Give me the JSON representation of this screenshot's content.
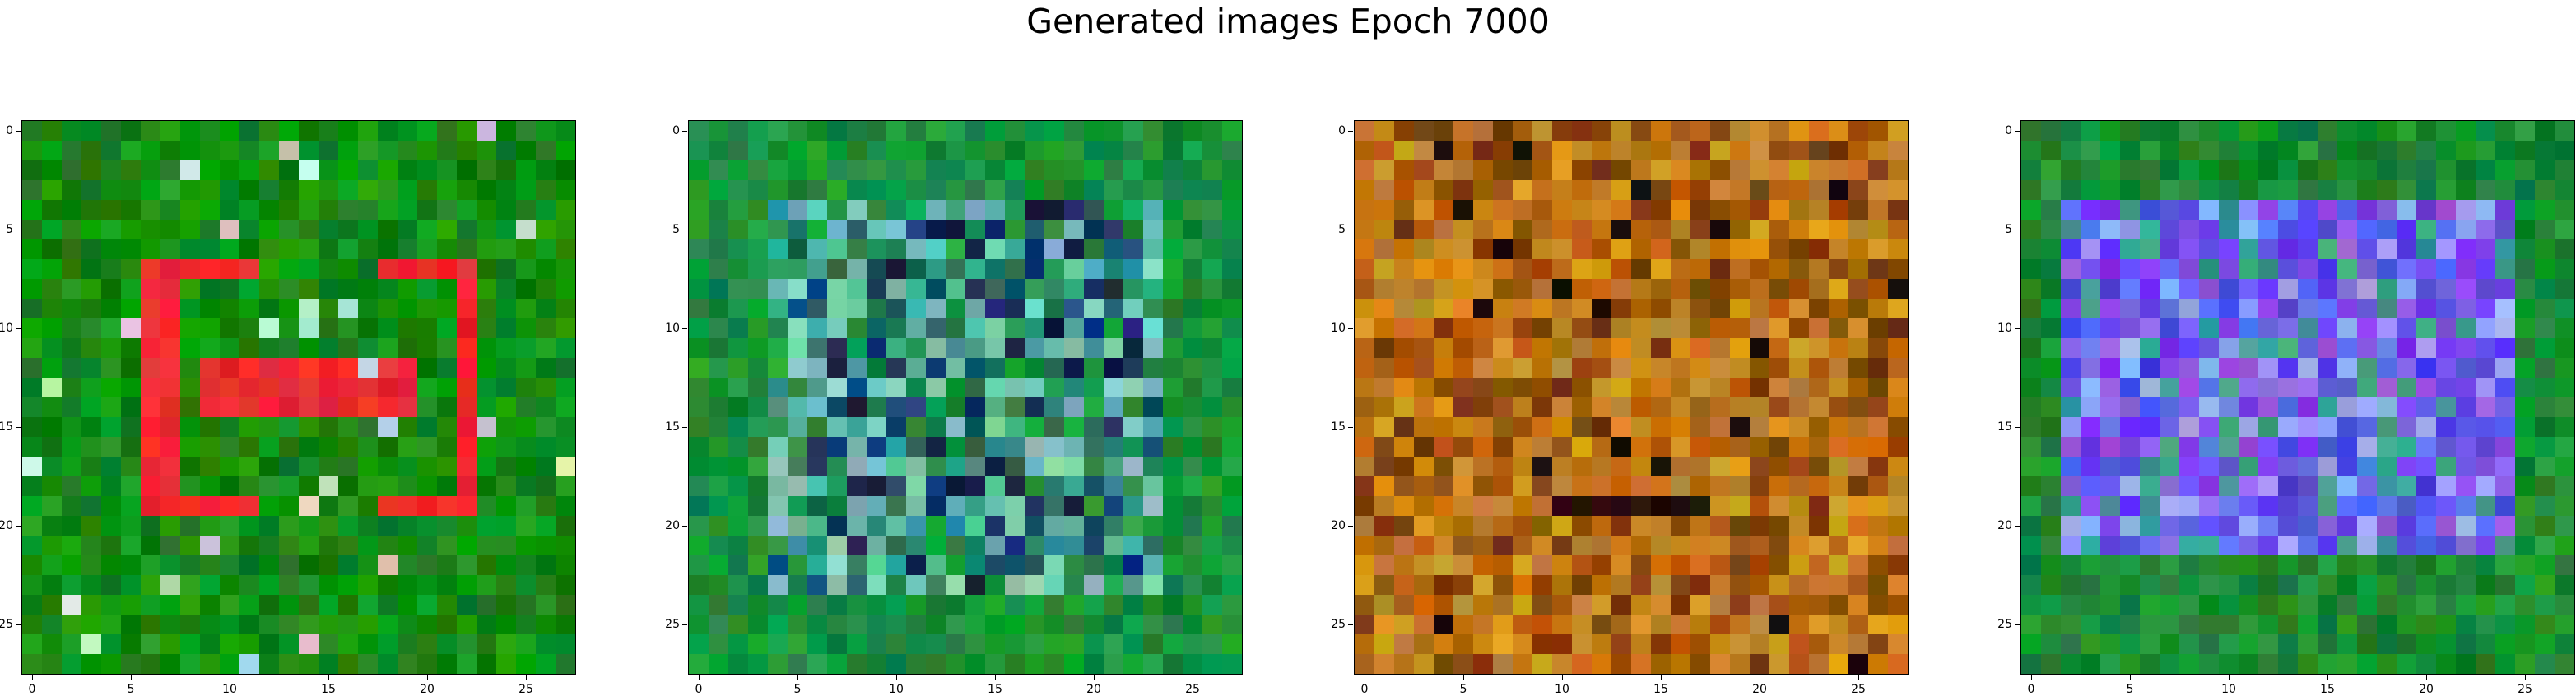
{
  "figure": {
    "title": "Generated images Epoch 7000"
  },
  "axes": {
    "grid_size": 28,
    "x_tick_labels": [
      "0",
      "5",
      "10",
      "15",
      "20",
      "25"
    ],
    "y_tick_labels": [
      "0",
      "5",
      "10",
      "15",
      "20",
      "25"
    ]
  },
  "panels": [
    {
      "name": "generated-image-1",
      "description_colors": {
        "background": "#1f8a1f",
        "foreground": "#ff2a2a"
      },
      "pattern": "red-rect"
    },
    {
      "name": "generated-image-2",
      "description_colors": {
        "background": "#1c8f3a",
        "foreground": "#4aa6a0"
      },
      "pattern": "teal-noise"
    },
    {
      "name": "generated-image-3",
      "description_colors": {
        "background": "#c8780f",
        "foreground": "#6b3a08"
      },
      "pattern": "orange-noise"
    },
    {
      "name": "generated-image-4",
      "description_colors": {
        "background": "#1d8c2e",
        "foreground": "#7a3af0"
      },
      "pattern": "purple-rect"
    }
  ]
}
